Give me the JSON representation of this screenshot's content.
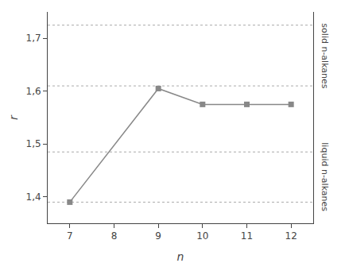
{
  "chart_data": {
    "type": "line",
    "x": [
      7,
      9,
      10,
      11,
      12
    ],
    "values": [
      1.39,
      1.605,
      1.575,
      1.575,
      1.575
    ],
    "color": "#888888",
    "marker": "square",
    "line_style": "solid",
    "xlabel": "n",
    "ylabel": "r",
    "xlim": [
      6.5,
      12.5
    ],
    "ylim": [
      1.35,
      1.75
    ],
    "xticks": [
      7,
      8,
      9,
      10,
      11,
      12
    ],
    "yticks": [
      {
        "value": 1.4,
        "label": "1,4"
      },
      {
        "value": 1.5,
        "label": "1,5"
      },
      {
        "value": 1.6,
        "label": "1,6"
      },
      {
        "value": 1.7,
        "label": "1,7"
      }
    ],
    "hlines": {
      "values": [
        1.725,
        1.61,
        1.485,
        1.39
      ],
      "color": "#aaaaaa",
      "line_style": "dotted"
    },
    "annotations": [
      {
        "text": "solid n-alkanes"
      },
      {
        "text": "liquid n-alkanes"
      }
    ],
    "grid": false
  }
}
